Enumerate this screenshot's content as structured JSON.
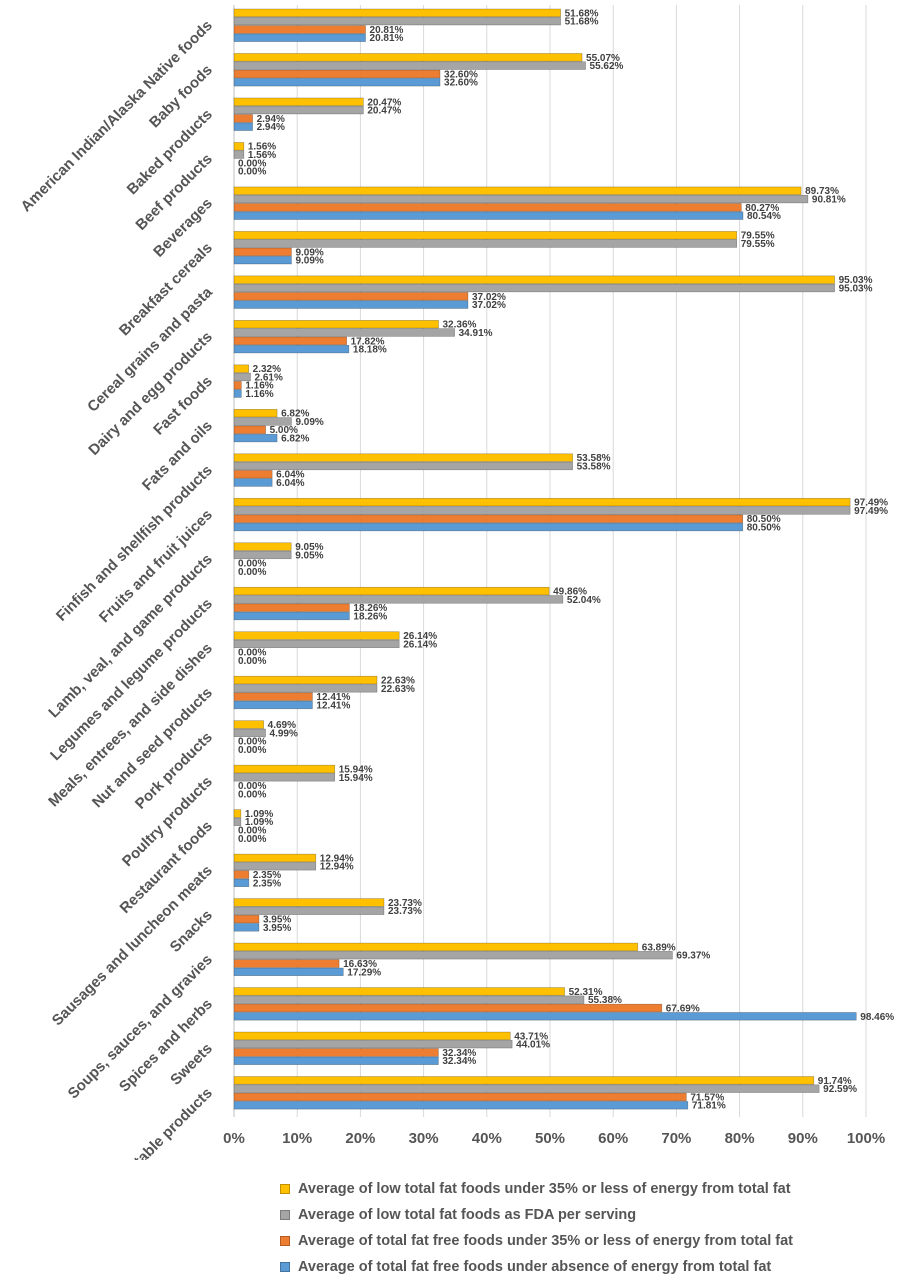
{
  "chart_data": {
    "type": "bar",
    "orientation": "horizontal",
    "xlim": [
      0,
      100
    ],
    "x_ticks": [
      "0%",
      "10%",
      "20%",
      "30%",
      "40%",
      "50%",
      "60%",
      "70%",
      "80%",
      "90%",
      "100%"
    ],
    "grid": true,
    "legend_position": "bottom",
    "categories": [
      "American Indian/Alaska Native foods",
      "Baby foods",
      "Baked products",
      "Beef products",
      "Beverages",
      "Breakfast cereals",
      "Cereal grains and pasta",
      "Dairy and egg products",
      "Fast foods",
      "Fats and oils",
      "Finfish and shellfish products",
      "Fruits and fruit juices",
      "Lamb, veal, and game products",
      "Legumes and legume products",
      "Meals, entrees, and side dishes",
      "Nut and seed products",
      "Pork products",
      "Poultry products",
      "Restaurant foods",
      "Sausages and luncheon meats",
      "Snacks",
      "Soups, sauces, and gravies",
      "Spices and herbs",
      "Sweets",
      "Vegetables and vegetable products"
    ],
    "series": [
      {
        "name": "Average of low total fat foods under 35% or less of energy from total fat",
        "color": "#FFC000",
        "values": [
          51.68,
          55.07,
          20.47,
          1.56,
          89.73,
          79.55,
          95.03,
          32.36,
          2.32,
          6.82,
          53.58,
          97.49,
          9.05,
          49.86,
          26.14,
          22.63,
          4.69,
          15.94,
          1.09,
          12.94,
          23.73,
          63.89,
          52.31,
          43.71,
          91.74
        ],
        "labels": [
          "51.68%",
          "55.07%",
          "20.47%",
          "1.56%",
          "89.73%",
          "79.55%",
          "95.03%",
          "32.36%",
          "2.32%",
          "6.82%",
          "53.58%",
          "97.49%",
          "9.05%",
          "49.86%",
          "26.14%",
          "22.63%",
          "4.69%",
          "15.94%",
          "1.09%",
          "12.94%",
          "23.73%",
          "63.89%",
          "52.31%",
          "43.71%",
          "91.74%"
        ]
      },
      {
        "name": "Average of low total fat foods as FDA per serving",
        "color": "#A5A5A5",
        "values": [
          51.68,
          55.62,
          20.47,
          1.56,
          90.81,
          79.55,
          95.03,
          34.91,
          2.61,
          9.09,
          53.58,
          97.49,
          9.05,
          52.04,
          26.14,
          22.63,
          4.99,
          15.94,
          1.09,
          12.94,
          23.73,
          69.37,
          55.38,
          44.01,
          92.59
        ],
        "labels": [
          "51.68%",
          "55.62%",
          "20.47%",
          "1.56%",
          "90.81%",
          "79.55%",
          "95.03%",
          "34.91%",
          "2.61%",
          "9.09%",
          "53.58%",
          "97.49%",
          "9.05%",
          "52.04%",
          "26.14%",
          "22.63%",
          "4.99%",
          "15.94%",
          "1.09%",
          "12.94%",
          "23.73%",
          "69.37%",
          "55.38%",
          "44.01%",
          "92.59%"
        ]
      },
      {
        "name": "Average of total fat free foods under 35% or less of energy from total fat",
        "color": "#ED7D31",
        "values": [
          20.81,
          32.6,
          2.94,
          0.0,
          80.27,
          9.09,
          37.02,
          17.82,
          1.16,
          5.0,
          6.04,
          80.5,
          0.0,
          18.26,
          0.0,
          12.41,
          0.0,
          0.0,
          0.0,
          2.35,
          3.95,
          16.63,
          67.69,
          32.34,
          71.57
        ],
        "labels": [
          "20.81%",
          "32.60%",
          "2.94%",
          "0.00%",
          "80.27%",
          "9.09%",
          "37.02%",
          "17.82%",
          "1.16%",
          "5.00%",
          "6.04%",
          "80.50%",
          "0.00%",
          "18.26%",
          "0.00%",
          "12.41%",
          "0.00%",
          "0.00%",
          "0.00%",
          "2.35%",
          "3.95%",
          "16.63%",
          "67.69%",
          "32.34%",
          "71.57%"
        ]
      },
      {
        "name": "Average of total fat free foods under absence of energy from total fat",
        "color": "#5B9BD5",
        "values": [
          20.81,
          32.6,
          2.94,
          0.0,
          80.54,
          9.09,
          37.02,
          18.18,
          1.16,
          6.82,
          6.04,
          80.5,
          0.0,
          18.26,
          0.0,
          12.41,
          0.0,
          0.0,
          0.0,
          2.35,
          3.95,
          17.29,
          98.46,
          32.34,
          71.81
        ],
        "labels": [
          "20.81%",
          "32.60%",
          "2.94%",
          "0.00%",
          "80.54%",
          "9.09%",
          "37.02%",
          "18.18%",
          "1.16%",
          "6.82%",
          "6.04%",
          "80.50%",
          "0.00%",
          "18.26%",
          "0.00%",
          "12.41%",
          "0.00%",
          "0.00%",
          "0.00%",
          "2.35%",
          "3.95%",
          "17.29%",
          "98.46%",
          "32.34%",
          "71.81%"
        ]
      }
    ]
  }
}
